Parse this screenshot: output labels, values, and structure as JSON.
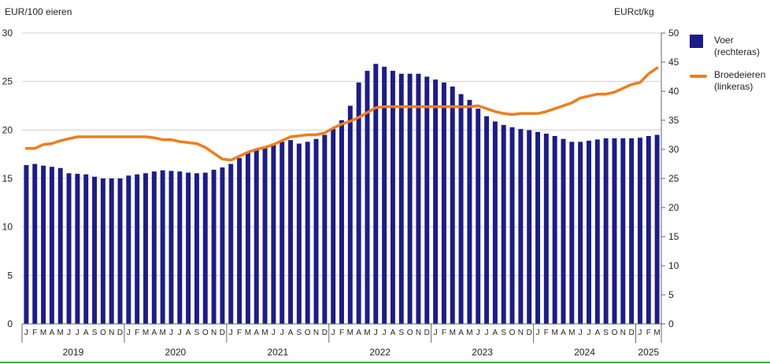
{
  "colors": {
    "bar": "#1c1c8c",
    "line": "#f07d1a",
    "grid": "#cfcfcf",
    "axis": "#666666",
    "bottom_rule": "#3cb04a"
  },
  "chart_data": {
    "type": "bar+line",
    "left_axis": {
      "unit": "EUR/100 eieren",
      "range": [
        0,
        30
      ],
      "ticks": [
        "0",
        "5",
        "10",
        "15",
        "20",
        "25",
        "30"
      ]
    },
    "right_axis": {
      "unit": "EURct/kg",
      "range": [
        0,
        50
      ],
      "ticks": [
        "0",
        "5",
        "10",
        "15",
        "20",
        "25",
        "30",
        "35",
        "40",
        "45",
        "50"
      ]
    },
    "month_labels": [
      "J",
      "F",
      "M",
      "A",
      "M",
      "J",
      "J",
      "A",
      "S",
      "O",
      "N",
      "D"
    ],
    "years": [
      "2019",
      "2020",
      "2021",
      "2022",
      "2023",
      "2024",
      "2025"
    ],
    "series": [
      {
        "name": "Voer (rechteras)",
        "type": "bar",
        "axis": "right",
        "values": [
          27.3,
          27.5,
          27.2,
          27.0,
          26.8,
          25.9,
          25.8,
          25.7,
          25.3,
          25.0,
          25.0,
          25.0,
          25.5,
          25.7,
          25.9,
          26.2,
          26.4,
          26.3,
          26.2,
          26.0,
          25.9,
          26.0,
          26.5,
          26.9,
          27.5,
          28.5,
          29.5,
          30.0,
          30.5,
          31.0,
          31.3,
          31.6,
          31.0,
          31.3,
          31.8,
          32.5,
          33.5,
          35.0,
          37.5,
          41.5,
          43.5,
          44.7,
          44.2,
          43.5,
          43.0,
          43.0,
          43.0,
          42.5,
          42.0,
          41.5,
          40.8,
          39.5,
          38.5,
          37.0,
          35.7,
          34.8,
          34.2,
          33.8,
          33.5,
          33.3,
          33.0,
          32.7,
          32.3,
          31.8,
          31.3,
          31.3,
          31.5,
          31.7,
          31.9,
          31.9,
          31.9,
          31.9,
          32.0,
          32.3,
          32.5
        ]
      },
      {
        "name": "Broedeieren (linkeras)",
        "type": "line",
        "axis": "left",
        "values": [
          18.1,
          18.1,
          18.5,
          18.6,
          18.9,
          19.1,
          19.3,
          19.3,
          19.3,
          19.3,
          19.3,
          19.3,
          19.3,
          19.3,
          19.3,
          19.2,
          19.0,
          19.0,
          18.8,
          18.7,
          18.6,
          18.2,
          17.6,
          17.0,
          16.9,
          17.3,
          17.7,
          18.0,
          18.2,
          18.5,
          18.9,
          19.3,
          19.4,
          19.5,
          19.5,
          19.7,
          20.2,
          20.6,
          20.9,
          21.3,
          21.8,
          22.3,
          22.4,
          22.4,
          22.4,
          22.4,
          22.4,
          22.4,
          22.4,
          22.4,
          22.4,
          22.4,
          22.4,
          22.5,
          22.2,
          21.9,
          21.7,
          21.6,
          21.7,
          21.7,
          21.7,
          21.9,
          22.2,
          22.5,
          22.8,
          23.3,
          23.5,
          23.7,
          23.7,
          23.9,
          24.3,
          24.7,
          24.9,
          25.8,
          26.4
        ]
      }
    ],
    "legend": [
      {
        "label_1": "Voer",
        "label_2": "(rechteras)"
      },
      {
        "label_1": "Broedeieren",
        "label_2": "(linkeras)"
      }
    ]
  }
}
